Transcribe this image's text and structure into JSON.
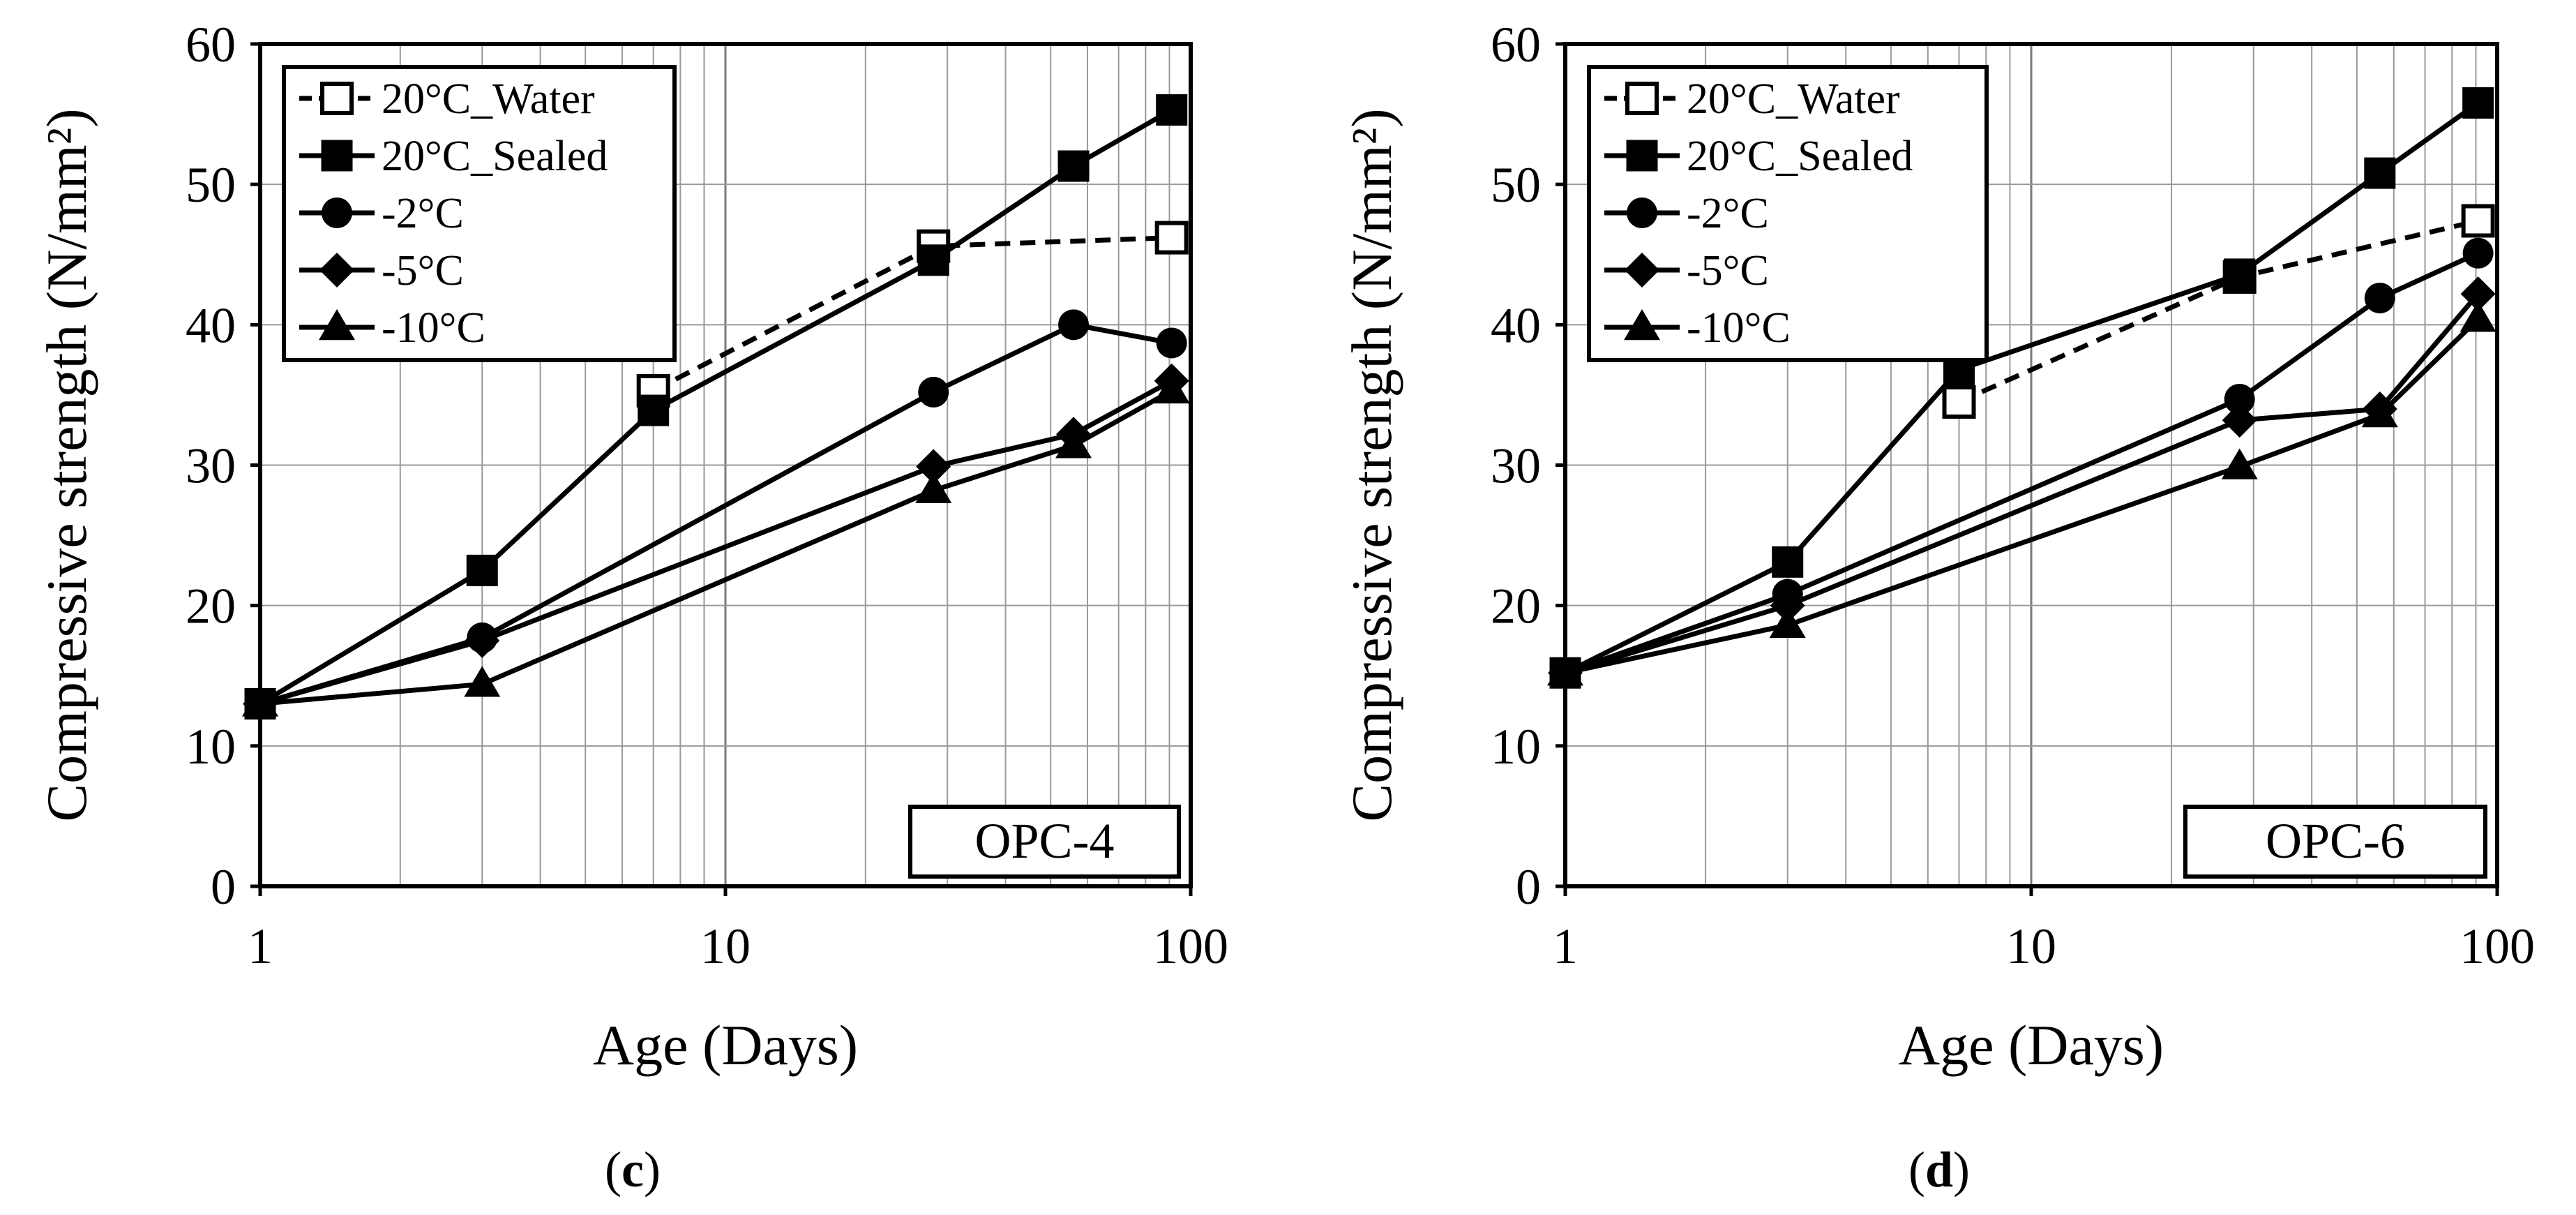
{
  "chart_data": [
    {
      "type": "line",
      "panel_label": "c",
      "box_label": "OPC-4",
      "xlabel": "Age (Days)",
      "ylabel": "Compressive strength (N/mm²)",
      "xscale": "log",
      "xlim": [
        1,
        100
      ],
      "ylim": [
        0,
        60
      ],
      "xticks": [
        "1",
        "10",
        "100"
      ],
      "yticks": [
        "0",
        "10",
        "20",
        "30",
        "40",
        "50",
        "60"
      ],
      "grid": true,
      "legend_position": "top-left",
      "series": [
        {
          "name": "20°C_Water",
          "marker": "square-open",
          "dash": true,
          "x": [
            7,
            28,
            91
          ],
          "y": [
            35.3,
            45.6,
            46.2
          ]
        },
        {
          "name": "20°C_Sealed",
          "marker": "square",
          "dash": false,
          "x": [
            1,
            3,
            7,
            28,
            56,
            91
          ],
          "y": [
            13.0,
            22.5,
            33.9,
            44.6,
            51.3,
            55.3
          ]
        },
        {
          "name": "-2°C",
          "marker": "circle",
          "dash": false,
          "x": [
            1,
            3,
            28,
            56,
            91
          ],
          "y": [
            13.0,
            17.7,
            35.2,
            40.0,
            38.7
          ]
        },
        {
          "name": "-5°C",
          "marker": "diamond",
          "dash": false,
          "x": [
            1,
            3,
            28,
            56,
            91
          ],
          "y": [
            13.0,
            17.5,
            29.9,
            32.2,
            36.0
          ]
        },
        {
          "name": "-10°C",
          "marker": "triangle",
          "dash": false,
          "x": [
            1,
            3,
            28,
            56,
            91
          ],
          "y": [
            13.0,
            14.4,
            28.2,
            31.4,
            35.3
          ]
        }
      ]
    },
    {
      "type": "line",
      "panel_label": "d",
      "box_label": "OPC-6",
      "xlabel": "Age (Days)",
      "ylabel": "Compressive strength (N/mm²)",
      "xscale": "log",
      "xlim": [
        1,
        100
      ],
      "ylim": [
        0,
        60
      ],
      "xticks": [
        "1",
        "10",
        "100"
      ],
      "yticks": [
        "0",
        "10",
        "20",
        "30",
        "40",
        "50",
        "60"
      ],
      "grid": true,
      "legend_position": "top-left",
      "series": [
        {
          "name": "20°C_Water",
          "marker": "square-open",
          "dash": true,
          "x": [
            7,
            28,
            91
          ],
          "y": [
            34.5,
            43.4,
            47.4
          ]
        },
        {
          "name": "20°C_Sealed",
          "marker": "square",
          "dash": false,
          "x": [
            1,
            3,
            7,
            28,
            56,
            91
          ],
          "y": [
            15.2,
            23.1,
            36.8,
            43.6,
            50.8,
            55.8
          ]
        },
        {
          "name": "-2°C",
          "marker": "circle",
          "dash": false,
          "x": [
            1,
            3,
            28,
            56,
            91
          ],
          "y": [
            15.2,
            20.8,
            34.7,
            41.9,
            45.1
          ]
        },
        {
          "name": "-5°C",
          "marker": "diamond",
          "dash": false,
          "x": [
            1,
            3,
            28,
            56,
            91
          ],
          "y": [
            15.2,
            20.0,
            33.2,
            34.0,
            42.2
          ]
        },
        {
          "name": "-10°C",
          "marker": "triangle",
          "dash": false,
          "x": [
            1,
            3,
            28,
            56,
            91
          ],
          "y": [
            15.2,
            18.6,
            29.9,
            33.6,
            40.4
          ]
        }
      ]
    }
  ]
}
